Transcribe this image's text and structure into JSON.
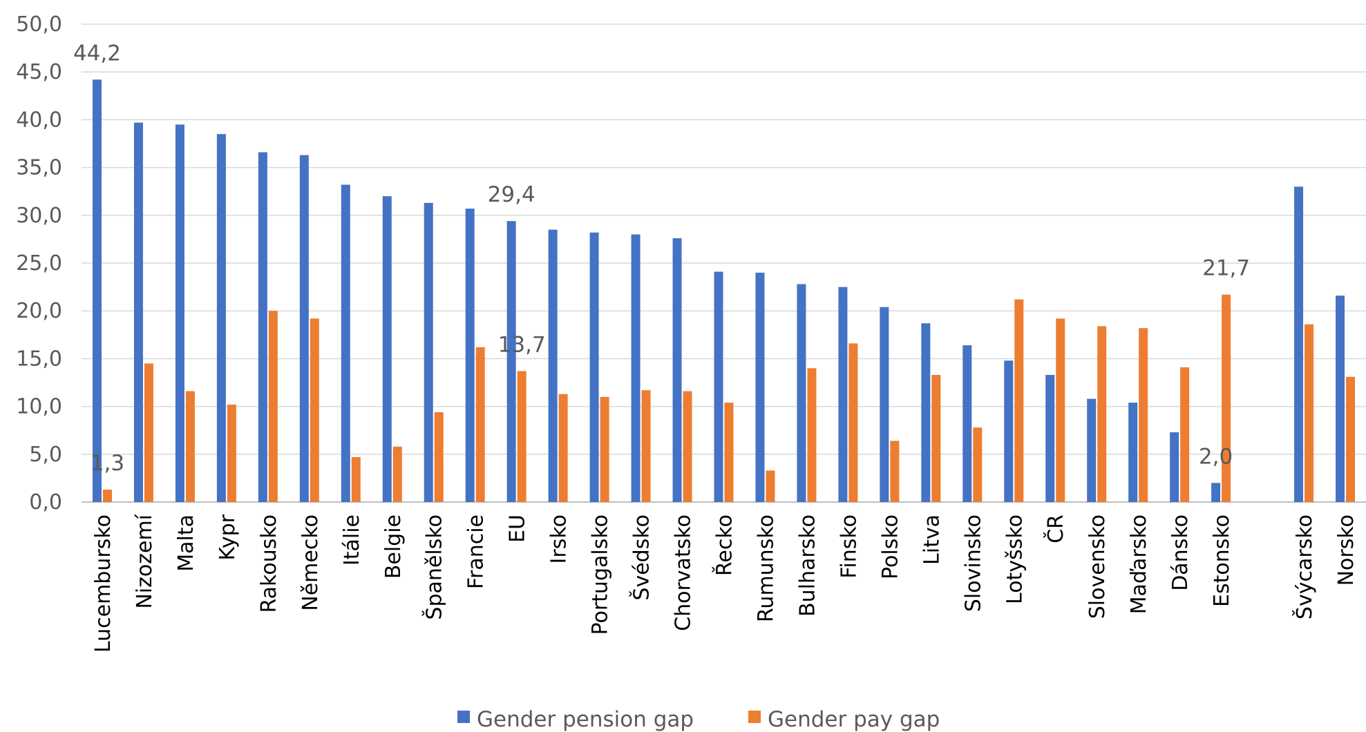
{
  "chart_data": {
    "type": "bar",
    "categories": [
      "Lucembursko",
      "Nizozemí",
      "Malta",
      "Kypr",
      "Rakousko",
      "Německo",
      "Itálie",
      "Belgie",
      "Španělsko",
      "Francie",
      "EU",
      "Irsko",
      "Portugalsko",
      "Švédsko",
      "Chorvatsko",
      "Řecko",
      "Rumunsko",
      "Bulharsko",
      "Finsko",
      "Polsko",
      "Litva",
      "Slovinsko",
      "Lotyšsko",
      "ČR",
      "Slovensko",
      "Maďarsko",
      "Dánsko",
      "Estonsko",
      "",
      "Švýcarsko",
      "Norsko"
    ],
    "series": [
      {
        "name": "Gender pension gap",
        "color": "#4472C4",
        "values": [
          44.2,
          39.7,
          39.5,
          38.5,
          36.6,
          36.3,
          33.2,
          32.0,
          31.3,
          30.7,
          29.4,
          28.5,
          28.2,
          28.0,
          27.6,
          24.1,
          24.0,
          22.8,
          22.5,
          20.4,
          18.7,
          16.4,
          14.8,
          13.3,
          10.8,
          10.4,
          7.3,
          2.0,
          null,
          33.0,
          21.6
        ]
      },
      {
        "name": "Gender pay gap",
        "color": "#ED7D31",
        "values": [
          1.3,
          14.5,
          11.6,
          10.2,
          20.0,
          19.2,
          4.7,
          5.8,
          9.4,
          16.2,
          13.7,
          11.3,
          11.0,
          11.7,
          11.6,
          10.4,
          3.3,
          14.0,
          16.6,
          6.4,
          13.3,
          7.8,
          21.2,
          19.2,
          18.4,
          18.2,
          14.1,
          21.7,
          null,
          18.6,
          13.1
        ]
      }
    ],
    "data_labels": [
      {
        "category": "Lucembursko",
        "series": "Gender pension gap",
        "text": "44,2"
      },
      {
        "category": "Lucembursko",
        "series": "Gender pay gap",
        "text": "1,3"
      },
      {
        "category": "EU",
        "series": "Gender pension gap",
        "text": "29,4"
      },
      {
        "category": "EU",
        "series": "Gender pay gap",
        "text": "13,7"
      },
      {
        "category": "Estonsko",
        "series": "Gender pension gap",
        "text": "2,0"
      },
      {
        "category": "Estonsko",
        "series": "Gender pay gap",
        "text": "21,7"
      }
    ],
    "y_ticks": [
      "0,0",
      "5,0",
      "10,0",
      "15,0",
      "20,0",
      "25,0",
      "30,0",
      "35,0",
      "40,0",
      "45,0",
      "50,0"
    ],
    "ylim": [
      0,
      50
    ],
    "grid": true,
    "legend_position": "bottom"
  }
}
